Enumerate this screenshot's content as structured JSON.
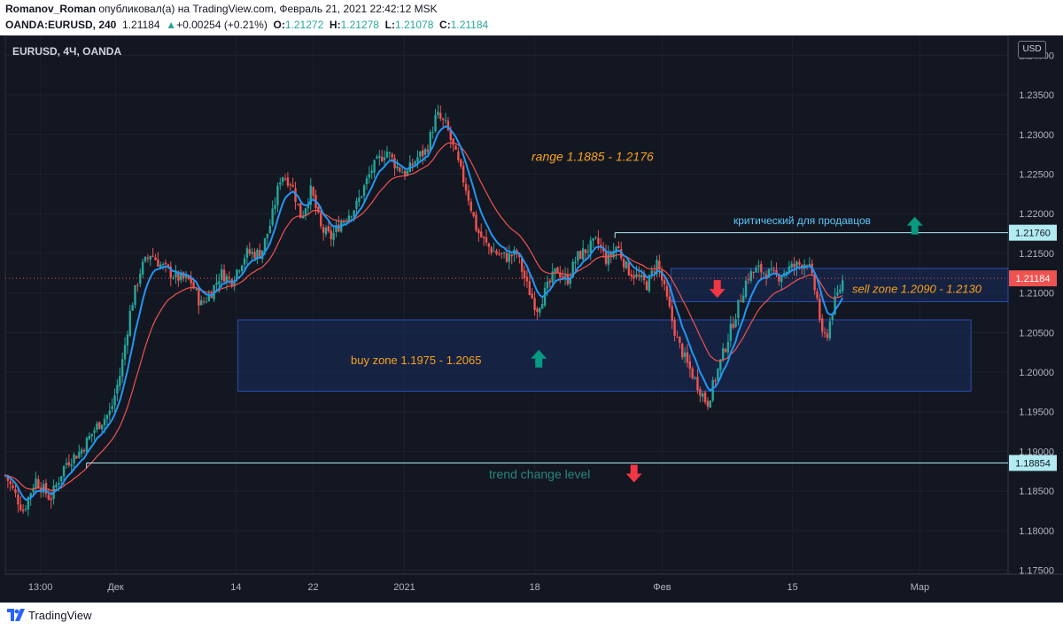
{
  "header": {
    "author": "Romanov_Roman",
    "published_text": "опубликовал(а) на TradingView.com, Февраль 21, 2021 22:42:12 MSK",
    "symbol": "OANDA:EURUSD, 240",
    "last": "1.21184",
    "change_arrow": "▲",
    "change": "+0.00254 (+0.21%)",
    "o_label": "O:",
    "o_val": "1.21272",
    "h_label": "H:",
    "h_val": "1.21278",
    "l_label": "L:",
    "l_val": "1.21078",
    "c_label": "C:",
    "c_val": "1.21184"
  },
  "footer": {
    "brand": "TradingView",
    "logo_icon": "tradingview-logo-icon"
  },
  "currency_button": "USD",
  "colors": {
    "background": "#131722",
    "grid": "#2a2e39",
    "candle_up": "#26a69a",
    "candle_down": "#ef5350",
    "ema_fast": "#2196f3",
    "ema_slow": "#ef5350",
    "zone_fill": "#1a2b5c",
    "zone_border": "#2b4db0",
    "level_line": "#b2ebf2",
    "annotation_orange": "#f7a21b",
    "annotation_cyan": "#5ac8fa",
    "annotation_teal": "#26867a",
    "arrow_up": "#089981",
    "arrow_down": "#f23645"
  },
  "chart_data": {
    "type": "candlestick",
    "symbol_label": "EURUSD, 4Ч, OANDA",
    "y_axis": {
      "ticks": [
        "1.17500",
        "1.18000",
        "1.18500",
        "1.19000",
        "1.19500",
        "1.20000",
        "1.20500",
        "1.21000",
        "1.21500",
        "1.22000",
        "1.22500",
        "1.23000",
        "1.23500",
        "1.24000"
      ],
      "range": [
        1.1745,
        1.2425
      ]
    },
    "x_axis": {
      "ticks": [
        {
          "label": "13:00",
          "x": 0.035
        },
        {
          "label": "Дек",
          "x": 0.11
        },
        {
          "label": "14",
          "x": 0.23
        },
        {
          "label": "22",
          "x": 0.307
        },
        {
          "label": "2021",
          "x": 0.398
        },
        {
          "label": "18",
          "x": 0.528
        },
        {
          "label": "Фев",
          "x": 0.655
        },
        {
          "label": "15",
          "x": 0.785
        },
        {
          "label": "Мар",
          "x": 0.912
        }
      ]
    },
    "price_path": [
      [
        0.0,
        1.187
      ],
      [
        0.018,
        1.1825
      ],
      [
        0.03,
        1.1865
      ],
      [
        0.045,
        1.184
      ],
      [
        0.06,
        1.1885
      ],
      [
        0.075,
        1.19
      ],
      [
        0.09,
        1.193
      ],
      [
        0.105,
        1.195
      ],
      [
        0.115,
        1.2
      ],
      [
        0.125,
        1.208
      ],
      [
        0.135,
        1.213
      ],
      [
        0.145,
        1.215
      ],
      [
        0.155,
        1.2135
      ],
      [
        0.17,
        1.212
      ],
      [
        0.185,
        1.2115
      ],
      [
        0.195,
        1.2085
      ],
      [
        0.205,
        1.21
      ],
      [
        0.215,
        1.2125
      ],
      [
        0.225,
        1.2115
      ],
      [
        0.24,
        1.215
      ],
      [
        0.255,
        1.215
      ],
      [
        0.265,
        1.219
      ],
      [
        0.275,
        1.225
      ],
      [
        0.285,
        1.224
      ],
      [
        0.295,
        1.2195
      ],
      [
        0.305,
        1.223
      ],
      [
        0.315,
        1.218
      ],
      [
        0.325,
        1.217
      ],
      [
        0.335,
        1.219
      ],
      [
        0.35,
        1.221
      ],
      [
        0.365,
        1.2255
      ],
      [
        0.38,
        1.228
      ],
      [
        0.39,
        1.226
      ],
      [
        0.4,
        1.225
      ],
      [
        0.41,
        1.227
      ],
      [
        0.42,
        1.228
      ],
      [
        0.43,
        1.2325
      ],
      [
        0.44,
        1.231
      ],
      [
        0.45,
        1.227
      ],
      [
        0.46,
        1.223
      ],
      [
        0.47,
        1.218
      ],
      [
        0.48,
        1.216
      ],
      [
        0.49,
        1.215
      ],
      [
        0.5,
        1.2145
      ],
      [
        0.51,
        1.215
      ],
      [
        0.52,
        1.211
      ],
      [
        0.53,
        1.208
      ],
      [
        0.54,
        1.2105
      ],
      [
        0.55,
        1.213
      ],
      [
        0.56,
        1.2115
      ],
      [
        0.57,
        1.2145
      ],
      [
        0.58,
        1.2155
      ],
      [
        0.59,
        1.2165
      ],
      [
        0.6,
        1.214
      ],
      [
        0.61,
        1.216
      ],
      [
        0.62,
        1.213
      ],
      [
        0.63,
        1.212
      ],
      [
        0.64,
        1.211
      ],
      [
        0.65,
        1.214
      ],
      [
        0.66,
        1.209
      ],
      [
        0.67,
        1.204
      ],
      [
        0.68,
        1.201
      ],
      [
        0.69,
        1.1985
      ],
      [
        0.7,
        1.196
      ],
      [
        0.71,
        1.2
      ],
      [
        0.72,
        1.204
      ],
      [
        0.73,
        1.208
      ],
      [
        0.74,
        1.212
      ],
      [
        0.75,
        1.213
      ],
      [
        0.76,
        1.2125
      ],
      [
        0.77,
        1.212
      ],
      [
        0.78,
        1.213
      ],
      [
        0.79,
        1.2135
      ],
      [
        0.8,
        1.214
      ],
      [
        0.81,
        1.209
      ],
      [
        0.815,
        1.204
      ],
      [
        0.82,
        1.205
      ],
      [
        0.825,
        1.208
      ],
      [
        0.835,
        1.2115
      ]
    ],
    "levels": [
      {
        "name": "critical-level",
        "price": 1.2176,
        "label": "1.21760",
        "from_x": 0.608
      },
      {
        "name": "trend-change-level",
        "price": 1.18854,
        "label": "1.18854",
        "from_x": 0.081
      },
      {
        "name": "current-price",
        "price": 1.21184,
        "label": "1.21184"
      }
    ],
    "zones": [
      {
        "name": "buy-zone",
        "x1": 0.232,
        "x2": 0.963,
        "top": 1.2066,
        "bottom": 1.1976,
        "label": "buy zone 1.1975 - 1.2065"
      },
      {
        "name": "sell-zone",
        "x1": 0.664,
        "x2": 1.0,
        "top": 1.2131,
        "bottom": 1.2089,
        "label": "sell zone 1.2090 - 1.2130"
      }
    ],
    "annotations": {
      "range": "range 1.1885 - 1.2176",
      "critical": "критический для продавцов",
      "buy_zone": "buy zone 1.1975 - 1.2065",
      "sell_zone": "sell zone 1.2090 - 1.2130",
      "trend_change": "trend change level"
    },
    "arrows": [
      {
        "name": "arrow-up-critical",
        "dir": "up",
        "x": 0.907,
        "price": 1.2185
      },
      {
        "name": "arrow-up-buy",
        "dir": "up",
        "x": 0.532,
        "price": 1.2017
      },
      {
        "name": "arrow-down-sell",
        "dir": "down",
        "x": 0.71,
        "price": 1.2105
      },
      {
        "name": "arrow-down-trend",
        "dir": "down",
        "x": 0.627,
        "price": 1.1872
      }
    ]
  }
}
